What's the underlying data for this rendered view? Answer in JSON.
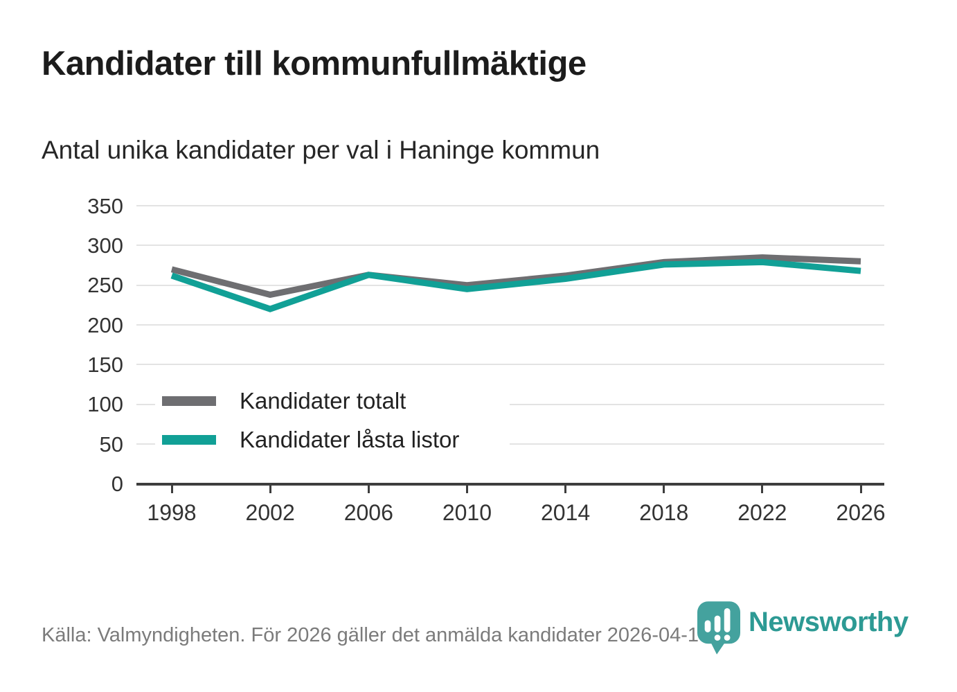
{
  "title": "Kandidater till kommunfullmäktige",
  "subtitle": "Antal unika kandidater per val i Haninge kommun",
  "source": "Källa: Valmyndigheten. För 2026 gäller det anmälda kandidater 2026-04-10.",
  "logo": {
    "text": "Newsworthy",
    "icon": "newsworthy-pin-barchart-icon"
  },
  "colors": {
    "total_line": "#6e6e71",
    "locked_line": "#11a096",
    "grid": "#e3e3e3",
    "axis": "#3d3d3d",
    "tick_text": "#333333",
    "title_text": "#1c1c1c",
    "source_text": "#7b7b7b",
    "logo_teal": "#44a29e",
    "logo_text_teal": "#2d9a94"
  },
  "chart_data": {
    "type": "line",
    "title": "Kandidater till kommunfullmäktige",
    "subtitle": "Antal unika kandidater per val i Haninge kommun",
    "x": [
      1998,
      2002,
      2006,
      2010,
      2014,
      2018,
      2022,
      2026
    ],
    "series": [
      {
        "name": "Kandidater totalt",
        "color": "#6e6e71",
        "values": [
          270,
          238,
          263,
          250,
          262,
          279,
          285,
          280
        ]
      },
      {
        "name": "Kandidater låsta listor",
        "color": "#11a096",
        "values": [
          262,
          220,
          263,
          245,
          258,
          276,
          279,
          268
        ]
      }
    ],
    "ylim": [
      0,
      350
    ],
    "y_ticks": [
      0,
      50,
      100,
      150,
      200,
      250,
      300,
      350
    ],
    "grid": "horizontal-only",
    "legend_position": "inside-top-left"
  }
}
